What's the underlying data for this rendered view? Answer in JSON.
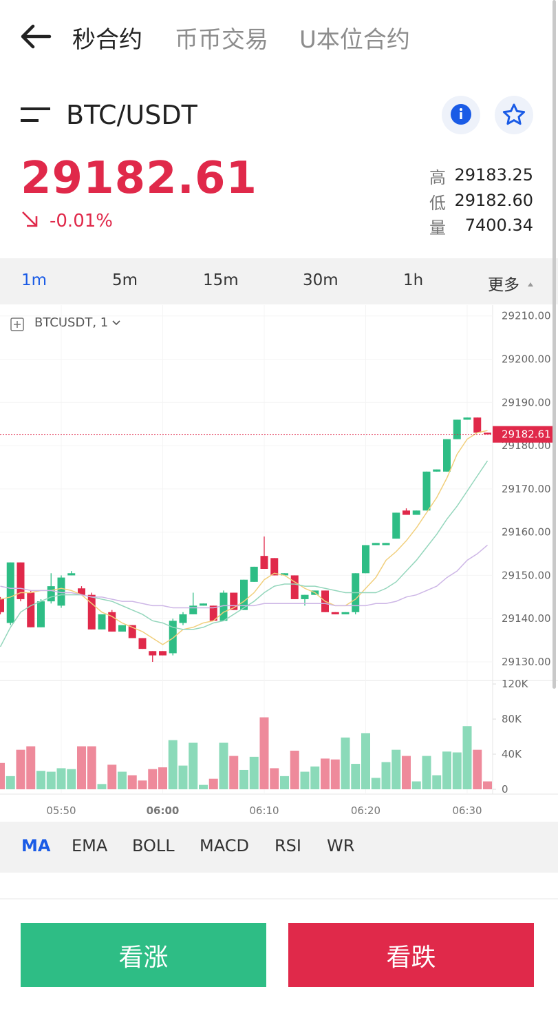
{
  "nav": {
    "tabs": [
      "秒合约",
      "币币交易",
      "U本位合约"
    ]
  },
  "pair": "BTC/USDT",
  "ticker": {
    "price": "29182.61",
    "change": "-0.01%",
    "stats": [
      {
        "label": "高",
        "value": "29183.25"
      },
      {
        "label": "低",
        "value": "29182.60"
      },
      {
        "label": "量",
        "value": "7400.34"
      }
    ]
  },
  "intervals": [
    "1m",
    "5m",
    "15m",
    "30m",
    "1h",
    "更多"
  ],
  "indicators": [
    "MA",
    "EMA",
    "BOLL",
    "MACD",
    "RSI",
    "WR"
  ],
  "buttons": {
    "up": "看涨",
    "down": "看跌"
  },
  "chart_data": [
    {
      "type": "candlestick",
      "legend_label": "BTCUSDT, 1",
      "x": [
        "05:44",
        "05:45",
        "05:46",
        "05:47",
        "05:48",
        "05:49",
        "05:50",
        "05:51",
        "05:52",
        "05:53",
        "05:54",
        "05:55",
        "05:56",
        "05:57",
        "05:58",
        "05:59",
        "06:00",
        "06:01",
        "06:02",
        "06:03",
        "06:04",
        "06:05",
        "06:06",
        "06:07",
        "06:08",
        "06:09",
        "06:10",
        "06:11",
        "06:12",
        "06:13",
        "06:14",
        "06:15",
        "06:16",
        "06:17",
        "06:18",
        "06:19",
        "06:20",
        "06:21",
        "06:22",
        "06:23",
        "06:24",
        "06:25",
        "06:26",
        "06:27",
        "06:28",
        "06:29",
        "06:30",
        "06:31",
        "06:32"
      ],
      "open": [
        29144.5,
        29139,
        29153,
        29146,
        29138,
        29144,
        29143,
        29150,
        29147,
        29145.5,
        29137.5,
        29141.5,
        29137,
        29138.5,
        29135.5,
        29132.5,
        29132.5,
        29132,
        29139,
        29141,
        29143,
        29143,
        29139.5,
        29146,
        29142,
        29148.5,
        29154.5,
        29154,
        29150,
        29150,
        29144.5,
        29145.5,
        29146.5,
        29141.5,
        29141,
        29141.5,
        29150.5,
        29157,
        29157,
        29158.5,
        29165,
        29164,
        29165,
        29174,
        29174,
        29181.5,
        29186,
        29186.5,
        29183
      ],
      "high": [
        29145,
        29153,
        29153,
        29146.5,
        29144.5,
        29150.5,
        29150,
        29151,
        29147.5,
        29146,
        29141,
        29142,
        29138.5,
        29138.5,
        29135.5,
        29132.5,
        29132.5,
        29140,
        29141.5,
        29146,
        29143.5,
        29143,
        29146.5,
        29146,
        29149,
        29152,
        29159,
        29154,
        29150.5,
        29150,
        29145.5,
        29146.5,
        29146.5,
        29141.5,
        29141.5,
        29150.5,
        29157,
        29157.5,
        29157.5,
        29164.5,
        29165.5,
        29165,
        29174,
        29174.5,
        29181.5,
        29186,
        29186.5,
        29186.5,
        29183
      ],
      "low": [
        29141,
        29138.5,
        29144,
        29138,
        29138,
        29143.5,
        29142.5,
        29150,
        29145.5,
        29137.5,
        29137.5,
        29137,
        29137,
        29135.5,
        29133,
        29130,
        29131.5,
        29131.5,
        29138.5,
        29141,
        29143,
        29139.5,
        29139.5,
        29142,
        29142,
        29148.5,
        29151.5,
        29150,
        29150,
        29144.5,
        29143,
        29145.5,
        29141.5,
        29141,
        29141,
        29141,
        29150.5,
        29157,
        29157,
        29158.5,
        29164,
        29164,
        29165,
        29174,
        29174,
        29181.5,
        29186,
        29183,
        29182.61
      ],
      "close": [
        29141.5,
        29153,
        29144.5,
        29138,
        29144,
        29147.5,
        29149.5,
        29150.5,
        29145.5,
        29137.5,
        29141,
        29137,
        29138.5,
        29135.5,
        29133,
        29131.5,
        29131.5,
        29139.5,
        29141,
        29143,
        29143.5,
        29139.5,
        29146,
        29142,
        29149,
        29152,
        29151.5,
        29150,
        29150.5,
        29144.5,
        29145.5,
        29146.5,
        29141.5,
        29141,
        29141.5,
        29150.5,
        29157,
        29157.5,
        29157.5,
        29164.5,
        29164,
        29165,
        29174,
        29174.5,
        29181.5,
        29186,
        29186.5,
        29183,
        29182.61
      ],
      "up_color": "#2ebd85",
      "down_color": "#e0294a",
      "lines": [
        {
          "color": "#f1cf7c",
          "values": [
            29144.5,
            29145,
            29146,
            29146,
            29146.5,
            29146.5,
            29147,
            29146.5,
            29145.5,
            29143.5,
            29141.5,
            29140.5,
            29139,
            29138,
            29137,
            29135.5,
            29134,
            29135.5,
            29137.5,
            29138,
            29139,
            29139.5,
            29141.5,
            29142.5,
            29144,
            29146,
            29149,
            29150.5,
            29150,
            29148.5,
            29147,
            29146,
            29144,
            29143,
            29143,
            29144.5,
            29147,
            29149.5,
            29153.5,
            29155.5,
            29158,
            29161,
            29164.5,
            29168,
            29172.5,
            29178,
            29181.5,
            29183,
            29183.5
          ]
        },
        {
          "color": "#94d6bc",
          "values": [
            29133.5,
            29138,
            29141.5,
            29143,
            29144,
            29145,
            29145.5,
            29145.5,
            29145.5,
            29145,
            29144.5,
            29144,
            29143,
            29142,
            29141,
            29139.5,
            29139,
            29138,
            29137.5,
            29137.5,
            29138,
            29139,
            29139.5,
            29141,
            29142.5,
            29144,
            29146,
            29147.5,
            29148,
            29148,
            29147.5,
            29147.5,
            29147,
            29146.5,
            29146,
            29146,
            29146,
            29146,
            29147,
            29148.5,
            29151,
            29153.5,
            29156.5,
            29159.5,
            29163,
            29166,
            29169.5,
            29173,
            29176.5
          ]
        },
        {
          "color": "#cdb6e6",
          "values": [
            29147.5,
            29147,
            29147,
            29146.5,
            29146.5,
            29146.5,
            29146,
            29146,
            29145.5,
            29145,
            29145,
            29144.5,
            29144,
            29144,
            29143.5,
            29143,
            29143,
            29142.5,
            29142.5,
            29142.5,
            29142.5,
            29142.5,
            29143,
            29143,
            29143,
            29143,
            29143.5,
            29143.5,
            29143.5,
            29143.5,
            29143.5,
            29143.5,
            29143.5,
            29143,
            29143,
            29143,
            29143,
            29143.5,
            29143.5,
            29144,
            29145,
            29145.5,
            29146.5,
            29147.5,
            29149.5,
            29151,
            29153.5,
            29155,
            29157
          ]
        }
      ],
      "ylim": [
        29125.7,
        29212.5
      ],
      "yticks": [
        {
          "value": 29130,
          "label": "29130.00"
        },
        {
          "value": 29140,
          "label": "29140.00"
        },
        {
          "value": 29150,
          "label": "29150.00"
        },
        {
          "value": 29160,
          "label": "29160.00"
        },
        {
          "value": 29170,
          "label": "29170.00"
        },
        {
          "value": 29180,
          "label": "29180.00"
        },
        {
          "value": 29190,
          "label": "29190.00"
        },
        {
          "value": 29200,
          "label": "29200.00"
        },
        {
          "value": 29210,
          "label": "29210.00"
        }
      ],
      "xticks": [
        "05:50",
        "06:00",
        "06:10",
        "06:20",
        "06:30"
      ],
      "emphasized_xtick": 1,
      "grid": true,
      "price_line": {
        "value": 29182.61,
        "label": "29182.61"
      }
    },
    {
      "type": "bar",
      "values": [
        30000,
        15000,
        45000,
        49000,
        21000,
        20000,
        24000,
        23000,
        49000,
        49000,
        6000,
        28000,
        20000,
        16000,
        10000,
        23000,
        25000,
        56000,
        27000,
        53000,
        5000,
        12000,
        53000,
        38000,
        22000,
        37000,
        82000,
        24000,
        15000,
        44000,
        20000,
        26000,
        35000,
        34000,
        59000,
        29000,
        64000,
        13000,
        31000,
        45000,
        38000,
        9000,
        38000,
        16000,
        43000,
        42000,
        72000,
        45000,
        9000
      ],
      "up_color": "#8bdab9",
      "down_color": "#ee8a9b",
      "ylim": [
        -5500,
        124000
      ],
      "yticks": [
        0,
        {
          "value": 40000,
          "label": "40K"
        },
        {
          "value": 80000,
          "label": "80K"
        },
        {
          "value": 120000,
          "label": "120K"
        }
      ]
    }
  ]
}
